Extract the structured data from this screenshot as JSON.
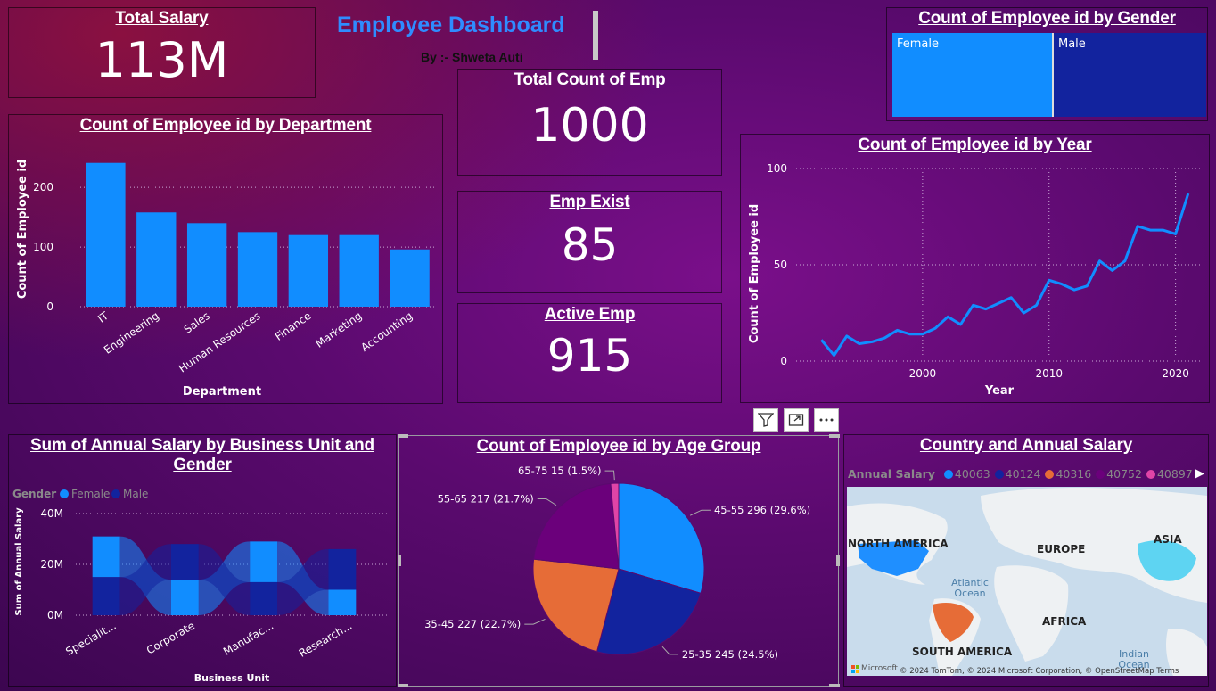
{
  "header": {
    "title": "Employee Dashboard",
    "author": "By :- Shweta Auti"
  },
  "kpis": {
    "total_salary": {
      "label": "Total Salary",
      "value": "113M"
    },
    "total_count": {
      "label": "Total Count of Emp",
      "value": "1000"
    },
    "emp_exist": {
      "label": "Emp Exist",
      "value": "85"
    },
    "active_emp": {
      "label": "Active Emp",
      "value": "915"
    }
  },
  "gender_card": {
    "title": "Count of Employee id by Gender",
    "female": "Female",
    "male": "Male"
  },
  "dept_chart": {
    "title": "Count of Employee id by Department"
  },
  "year_chart": {
    "title": "Count of Employee id by Year"
  },
  "bu_chart": {
    "title": "Sum of Annual Salary by Business Unit and Gender"
  },
  "age_chart": {
    "title": "Count of Employee id by Age Group"
  },
  "map_card": {
    "title": "Country and Annual Salary",
    "legend_title": "Annual Salary",
    "legend": [
      {
        "label": "40063",
        "color": "#118dff"
      },
      {
        "label": "40124",
        "color": "#12239e"
      },
      {
        "label": "40316",
        "color": "#e66c37"
      },
      {
        "label": "40752",
        "color": "#6b007b"
      },
      {
        "label": "40897",
        "color": "#e044a7"
      }
    ],
    "labels": {
      "na": "NORTH AMERICA",
      "eu": "EUROPE",
      "asia": "ASIA",
      "africa": "AFRICA",
      "sa": "SOUTH AMERICA",
      "atlantic": "Atlantic Ocean",
      "indian": "Indian Ocean"
    },
    "attribution": "© 2024 TomTom, © 2024 Microsoft Corporation, © OpenStreetMap  Terms",
    "ms_logo": "Microsoft"
  },
  "visual_toolbar": {
    "filter": "filter-icon",
    "focus": "focus-mode-icon",
    "more": "more-options-icon"
  },
  "chart_data": [
    {
      "type": "bar",
      "title": "Count of Employee id by Department",
      "xlabel": "Department",
      "ylabel": "Count of Employee id",
      "categories": [
        "IT",
        "Engineering",
        "Sales",
        "Human Resources",
        "Finance",
        "Marketing",
        "Accounting"
      ],
      "values": [
        241,
        158,
        140,
        125,
        120,
        120,
        96
      ],
      "ylim": [
        0,
        260
      ],
      "yticks": [
        0,
        100,
        200
      ],
      "color": "#118dff"
    },
    {
      "type": "line",
      "title": "Count of Employee id by Year",
      "xlabel": "Year",
      "ylabel": "Count of Employee id",
      "x": [
        1992,
        1993,
        1994,
        1995,
        1996,
        1997,
        1998,
        1999,
        2000,
        2001,
        2002,
        2003,
        2004,
        2005,
        2006,
        2007,
        2008,
        2009,
        2010,
        2011,
        2012,
        2013,
        2014,
        2015,
        2016,
        2017,
        2018,
        2019,
        2020,
        2021
      ],
      "y": [
        11,
        3,
        13,
        9,
        10,
        12,
        16,
        14,
        14,
        17,
        23,
        19,
        29,
        27,
        30,
        33,
        25,
        29,
        42,
        40,
        37,
        39,
        52,
        47,
        52,
        70,
        68,
        68,
        66,
        87
      ],
      "xlim": [
        1990,
        2022
      ],
      "ylim": [
        0,
        100
      ],
      "xticks": [
        2000,
        2010,
        2020
      ],
      "yticks": [
        0,
        50,
        100
      ],
      "color": "#118dff"
    },
    {
      "type": "area",
      "title": "Sum of Annual Salary by Business Unit and Gender",
      "xlabel": "Business Unit",
      "ylabel": "Sum of Annual Salary",
      "legend_title": "Gender",
      "categories": [
        "Speciality Products",
        "Corporate",
        "Manufacturing",
        "Research & Development"
      ],
      "tick_labels": [
        "Specialit...",
        "Corporate",
        "Manufac...",
        "Research..."
      ],
      "series": [
        {
          "name": "Female",
          "values": [
            16,
            14,
            16,
            10
          ],
          "color": "#118dff"
        },
        {
          "name": "Male",
          "values": [
            15,
            14,
            13,
            16
          ],
          "color": "#12239e"
        }
      ],
      "ylim": [
        0,
        40
      ],
      "yticks": [
        "0M",
        "20M",
        "40M"
      ]
    },
    {
      "type": "pie",
      "title": "Count of Employee id by Age Group",
      "slices": [
        {
          "label": "45-55",
          "value": 296,
          "pct": "29.6%",
          "color": "#118dff"
        },
        {
          "label": "25-35",
          "value": 245,
          "pct": "24.5%",
          "color": "#12239e"
        },
        {
          "label": "35-45",
          "value": 227,
          "pct": "22.7%",
          "color": "#e66c37"
        },
        {
          "label": "55-65",
          "value": 217,
          "pct": "21.7%",
          "color": "#6b007b"
        },
        {
          "label": "65-75",
          "value": 15,
          "pct": "1.5%",
          "color": "#e044a7"
        }
      ]
    }
  ]
}
